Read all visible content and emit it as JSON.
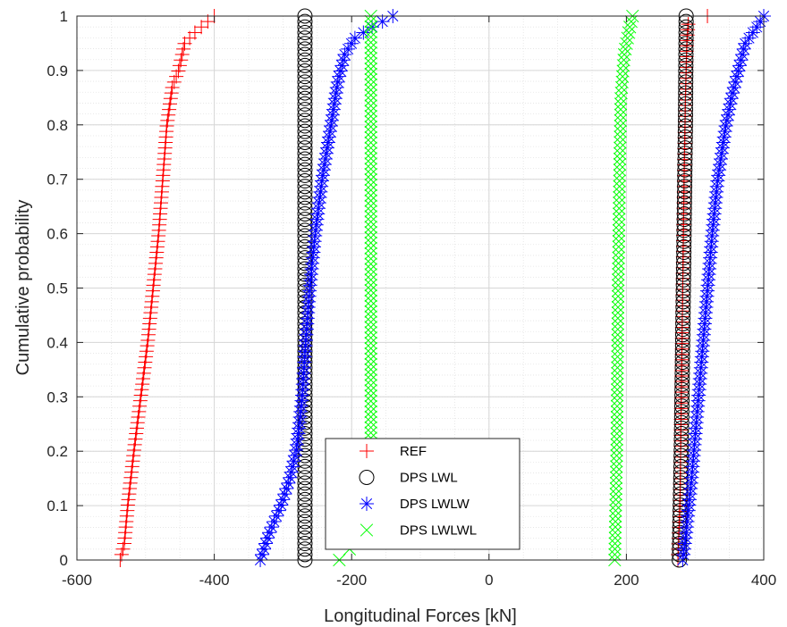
{
  "chart_data": {
    "type": "scatter",
    "title": "",
    "xlabel": "Longitudinal Forces [kN]",
    "ylabel": "Cumulative probability",
    "xlim": [
      -600,
      400
    ],
    "ylim": [
      0,
      1
    ],
    "xticks": [
      -600,
      -400,
      -200,
      0,
      200,
      400
    ],
    "yticks": [
      0,
      0.1,
      0.2,
      0.3,
      0.4,
      0.5,
      0.6,
      0.7,
      0.8,
      0.9,
      1
    ],
    "grid": true,
    "minor_grid": true,
    "legend_position": "bottom-center",
    "series": [
      {
        "name": "REF",
        "marker": "plus",
        "color": "#ff0000",
        "groups": [
          {
            "cdf": [
              [
                -537,
                0
              ],
              [
                -531,
                0.03
              ],
              [
                -526,
                0.1
              ],
              [
                -517,
                0.2
              ],
              [
                -507,
                0.3
              ],
              [
                -497,
                0.4
              ],
              [
                -489,
                0.5
              ],
              [
                -481,
                0.6
              ],
              [
                -475,
                0.7
              ],
              [
                -469,
                0.8
              ],
              [
                -461,
                0.87
              ],
              [
                -452,
                0.9
              ],
              [
                -443,
                0.95
              ],
              [
                -428,
                0.97
              ],
              [
                -400,
                1.0
              ]
            ]
          },
          {
            "cdf": [
              [
                275,
                0
              ],
              [
                278,
                0.1
              ],
              [
                280,
                0.3
              ],
              [
                282,
                0.5
              ],
              [
                284,
                0.7
              ],
              [
                286,
                0.85
              ],
              [
                288,
                0.95
              ],
              [
                290,
                0.985
              ]
            ],
            "extra_points": [
              [
                318,
                1.0
              ]
            ]
          }
        ]
      },
      {
        "name": "DPS LWL",
        "marker": "circle",
        "color": "#000000",
        "groups": [
          {
            "cdf": [
              [
                -268,
                0
              ],
              [
                -268,
                1.0
              ]
            ]
          },
          {
            "cdf": [
              [
                277,
                0
              ],
              [
                280,
                0.2
              ],
              [
                282,
                0.4
              ],
              [
                284,
                0.6
              ],
              [
                286,
                0.8
              ],
              [
                287,
                1.0
              ]
            ]
          }
        ]
      },
      {
        "name": "DPS LWLW",
        "marker": "asterisk",
        "color": "#0000ff",
        "groups": [
          {
            "cdf": [
              [
                -333,
                0
              ],
              [
                -320,
                0.05
              ],
              [
                -303,
                0.1
              ],
              [
                -290,
                0.15
              ],
              [
                -281,
                0.2
              ],
              [
                -276,
                0.25
              ],
              [
                -272,
                0.3
              ],
              [
                -267,
                0.4
              ],
              [
                -261,
                0.5
              ],
              [
                -253,
                0.6
              ],
              [
                -243,
                0.7
              ],
              [
                -230,
                0.8
              ],
              [
                -220,
                0.88
              ],
              [
                -210,
                0.93
              ],
              [
                -195,
                0.96
              ],
              [
                -170,
                0.98
              ],
              [
                -140,
                1.0
              ]
            ]
          },
          {
            "cdf": [
              [
                282,
                0
              ],
              [
                287,
                0.05
              ],
              [
                295,
                0.15
              ],
              [
                305,
                0.3
              ],
              [
                315,
                0.45
              ],
              [
                325,
                0.6
              ],
              [
                333,
                0.7
              ],
              [
                345,
                0.8
              ],
              [
                353,
                0.85
              ],
              [
                363,
                0.9
              ],
              [
                373,
                0.95
              ],
              [
                390,
                0.98
              ],
              [
                400,
                1.0
              ]
            ]
          }
        ]
      },
      {
        "name": "DPS LWLWL",
        "marker": "cross",
        "color": "#00ff00",
        "groups": [
          {
            "cdf": [
              [
                -172,
                0.04
              ],
              [
                -172,
                1.0
              ]
            ],
            "extra_points": [
              [
                -218,
                0
              ],
              [
                -203,
                0.02
              ],
              [
                -186,
                0.04
              ],
              [
                -178,
                0.06
              ]
            ]
          },
          {
            "cdf": [
              [
                183,
                0
              ],
              [
                186,
                0.2
              ],
              [
                188,
                0.5
              ],
              [
                190,
                0.7
              ],
              [
                192,
                0.85
              ],
              [
                197,
                0.93
              ],
              [
                205,
                0.98
              ],
              [
                209,
                1.0
              ]
            ]
          }
        ]
      }
    ]
  }
}
